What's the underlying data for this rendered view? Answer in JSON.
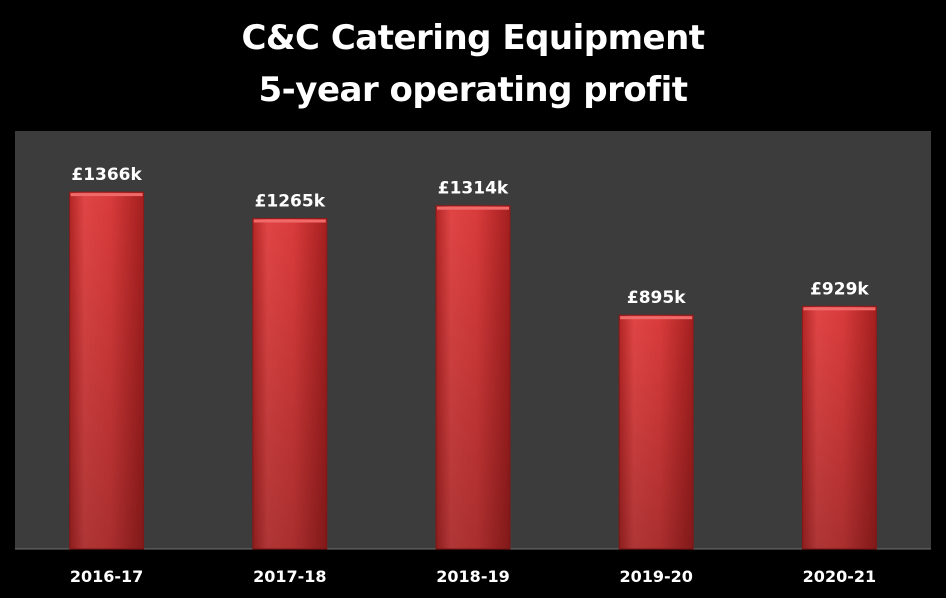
{
  "chart_data": {
    "type": "bar",
    "title": "C&C Catering Equipment",
    "subtitle": "5-year operating profit",
    "categories": [
      "2016-17",
      "2017-18",
      "2018-19",
      "2019-20",
      "2020-21"
    ],
    "values": [
      1366,
      1265,
      1314,
      895,
      929
    ],
    "data_labels": [
      "£1366k",
      "£1265k",
      "£1314k",
      "£895k",
      "£929k"
    ],
    "ylim": [
      0,
      1600
    ],
    "grid": false,
    "legend": "none",
    "colors": {
      "background": "#000000",
      "plot_area": "#3c3c3c",
      "bar": "#d63a3a",
      "text": "#ffffff"
    }
  }
}
